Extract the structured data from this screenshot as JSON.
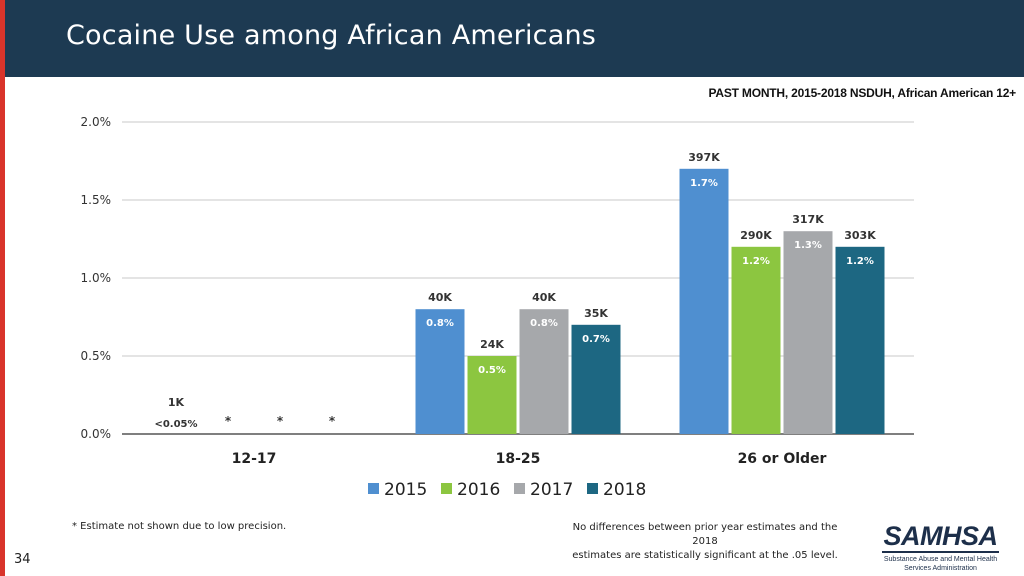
{
  "slide": {
    "title": "Cocaine Use among African Americans",
    "subtitle": "PAST MONTH, 2015-2018 NSDUH, African American 12+",
    "footnote_left": "* Estimate not shown due to low precision.",
    "footnote_right_1": "No differences between prior year estimates and the 2018",
    "footnote_right_2": "estimates are statistically significant at the .05 level.",
    "page_number": "34"
  },
  "logo": {
    "name": "SAMHSA",
    "tagline_1": "Substance Abuse and Mental Health",
    "tagline_2": "Services Administration"
  },
  "colors": {
    "header_bg": "#1d3a52",
    "accent_red": "#d9342b",
    "s2015": "#4f8fd0",
    "s2016": "#8cc640",
    "s2017": "#a6a8ab",
    "s2018": "#1d6782"
  },
  "chart_data": {
    "type": "bar",
    "title": "Cocaine Use among African Americans",
    "subtitle": "PAST MONTH, 2015-2018 NSDUH, African American 12+",
    "categories": [
      "12-17",
      "18-25",
      "26 or Older"
    ],
    "ylim": [
      0,
      2.0
    ],
    "yticks": [
      "0.0%",
      "0.5%",
      "1.0%",
      "1.5%",
      "2.0%"
    ],
    "ytick_values": [
      0,
      0.5,
      1.0,
      1.5,
      2.0
    ],
    "grid": true,
    "legend_position": "bottom",
    "series": [
      {
        "name": "2015",
        "color": "#4f8fd0",
        "values": [
          0.04,
          0.8,
          1.7
        ],
        "pct_labels": [
          "<0.05%",
          "0.8%",
          "1.7%"
        ],
        "count_labels": [
          "1K",
          "40K",
          "397K"
        ],
        "shown": [
          true,
          true,
          true
        ]
      },
      {
        "name": "2016",
        "color": "#8cc640",
        "values": [
          null,
          0.5,
          1.2
        ],
        "pct_labels": [
          "*",
          "0.5%",
          "1.2%"
        ],
        "count_labels": [
          "",
          "24K",
          "290K"
        ],
        "shown": [
          false,
          true,
          true
        ]
      },
      {
        "name": "2017",
        "color": "#a6a8ab",
        "values": [
          null,
          0.8,
          1.3
        ],
        "pct_labels": [
          "*",
          "0.8%",
          "1.3%"
        ],
        "count_labels": [
          "",
          "40K",
          "317K"
        ],
        "shown": [
          false,
          true,
          true
        ]
      },
      {
        "name": "2018",
        "color": "#1d6782",
        "values": [
          null,
          0.7,
          1.2
        ],
        "pct_labels": [
          "*",
          "0.7%",
          "1.2%"
        ],
        "count_labels": [
          "",
          "35K",
          "303K"
        ],
        "shown": [
          false,
          true,
          true
        ]
      }
    ]
  }
}
